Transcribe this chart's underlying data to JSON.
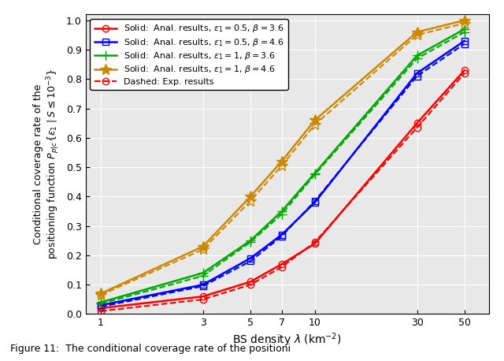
{
  "x": [
    1,
    3,
    5,
    7,
    10,
    30,
    50
  ],
  "series": [
    {
      "label": "Solid:  Anal. results, $\\epsilon_1 = 0.5$, $\\beta = 3.6$",
      "y": [
        0.02,
        0.06,
        0.11,
        0.17,
        0.24,
        0.65,
        0.83
      ],
      "color": "#ff0000",
      "linestyle": "-",
      "marker": "o",
      "markersize": 6,
      "markerfacecolor": "none"
    },
    {
      "label": "Solid:  Anal. results, $\\epsilon_1 = 0.5$, $\\beta = 4.6$",
      "y": [
        0.03,
        0.1,
        0.19,
        0.27,
        0.38,
        0.82,
        0.93
      ],
      "color": "#0000ff",
      "linestyle": "-",
      "marker": "s",
      "markersize": 6,
      "markerfacecolor": "none"
    },
    {
      "label": "Solid:  Anal. results, $\\epsilon_1 = 1$, $\\beta = 3.6$",
      "y": [
        0.04,
        0.14,
        0.25,
        0.35,
        0.48,
        0.88,
        0.97
      ],
      "color": "#00aa00",
      "linestyle": "-",
      "marker": "+",
      "markersize": 9,
      "markerfacecolor": "#00aa00"
    },
    {
      "label": "Solid:  Anal. results, $\\epsilon_1 = 1$, $\\beta = 4.6$",
      "y": [
        0.07,
        0.23,
        0.4,
        0.52,
        0.66,
        0.96,
        1.0
      ],
      "color": "#cc8800",
      "linestyle": "-",
      "marker": "*",
      "markersize": 10,
      "markerfacecolor": "#cc8800"
    }
  ],
  "exp_y_red": [
    0.01,
    0.05,
    0.1,
    0.16,
    0.245,
    0.635,
    0.82
  ],
  "exp_y_blue": [
    0.025,
    0.095,
    0.18,
    0.265,
    0.385,
    0.81,
    0.92
  ],
  "exp_y_green": [
    0.035,
    0.13,
    0.245,
    0.34,
    0.475,
    0.87,
    0.96
  ],
  "exp_y_orange": [
    0.065,
    0.22,
    0.385,
    0.505,
    0.645,
    0.95,
    0.99
  ],
  "xlabel": "BS density $\\lambda$ (km$^{-2}$)",
  "ylabel_line1": "Conditional coverage rate of the",
  "ylabel_line2": "positioning function $P_{p|c}\\{\\epsilon_1 \\mid S \\leq 10^{-3}\\}$",
  "caption": "Figure 11: The conditional coverage rate of the positioni",
  "xlim": [
    0.85,
    65
  ],
  "ylim": [
    0,
    1.02
  ],
  "yticks": [
    0,
    0.1,
    0.2,
    0.3,
    0.4,
    0.5,
    0.6,
    0.7,
    0.8,
    0.9,
    1.0
  ],
  "xticks": [
    1,
    3,
    5,
    7,
    10,
    30,
    50
  ],
  "bg_color": "#e8e8e8",
  "grid_color": "#ffffff"
}
